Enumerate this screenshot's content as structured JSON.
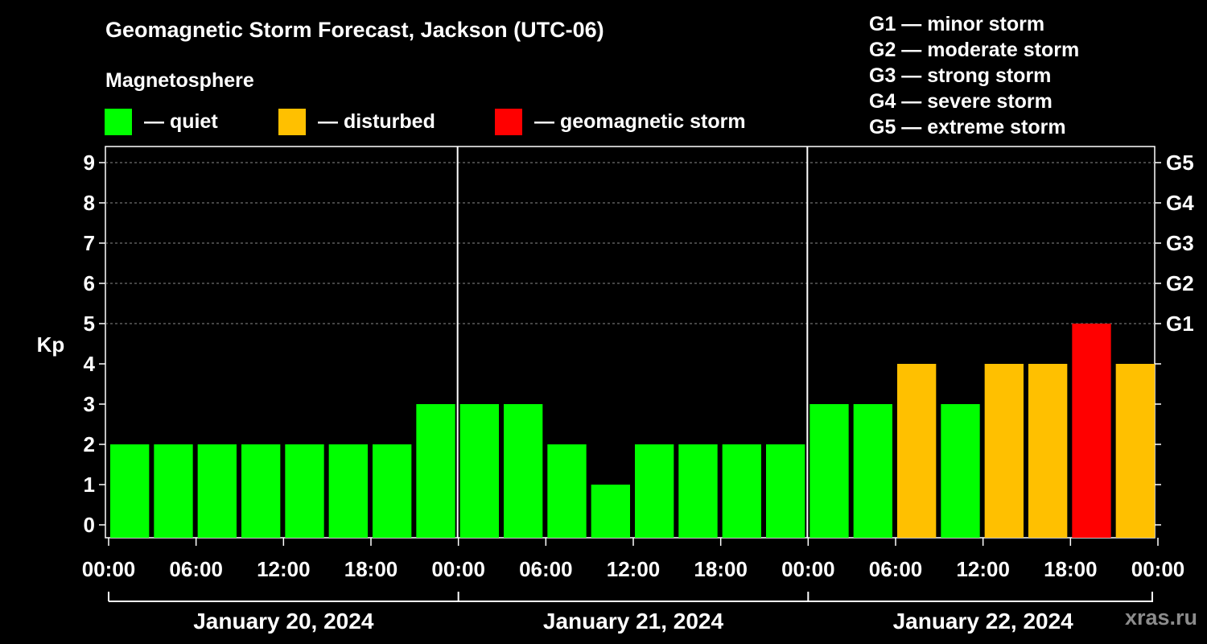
{
  "title": "Geomagnetic Storm Forecast, Jackson (UTC-06)",
  "subtitle": "Magnetosphere",
  "legend": [
    {
      "label": "— quiet",
      "color": "#00ff00"
    },
    {
      "label": "— disturbed",
      "color": "#ffc000"
    },
    {
      "label": "— geomagnetic storm",
      "color": "#ff0000"
    }
  ],
  "g_scale": [
    "G1 — minor storm",
    "G2 — moderate storm",
    "G3 — strong storm",
    "G4 — severe storm",
    "G5 — extreme storm"
  ],
  "watermark": "xras.ru",
  "chart_data": {
    "type": "bar",
    "ylabel": "Kp",
    "ylim": [
      0,
      9
    ],
    "y_ticks": [
      "0",
      "1",
      "2",
      "3",
      "4",
      "5",
      "6",
      "7",
      "8",
      "9"
    ],
    "right_ticks": [
      {
        "kp": 5,
        "label": "G1"
      },
      {
        "kp": 6,
        "label": "G2"
      },
      {
        "kp": 7,
        "label": "G3"
      },
      {
        "kp": 8,
        "label": "G4"
      },
      {
        "kp": 9,
        "label": "G5"
      }
    ],
    "x_tick_labels": [
      "00:00",
      "06:00",
      "12:00",
      "18:00",
      "00:00",
      "06:00",
      "12:00",
      "18:00",
      "00:00",
      "06:00",
      "12:00",
      "18:00",
      "00:00"
    ],
    "days": [
      "January 20, 2024",
      "January 21, 2024",
      "January 22, 2024"
    ],
    "interval_hours": 3,
    "values": [
      2,
      2,
      2,
      2,
      2,
      2,
      2,
      3,
      3,
      3,
      2,
      1,
      2,
      2,
      2,
      2,
      3,
      3,
      4,
      3,
      4,
      4,
      5,
      4
    ],
    "colors": {
      "quiet": "#00ff00",
      "disturbed": "#ffc000",
      "storm": "#ff0000"
    },
    "grid": "dashed horizontal",
    "legend_position": "top"
  }
}
